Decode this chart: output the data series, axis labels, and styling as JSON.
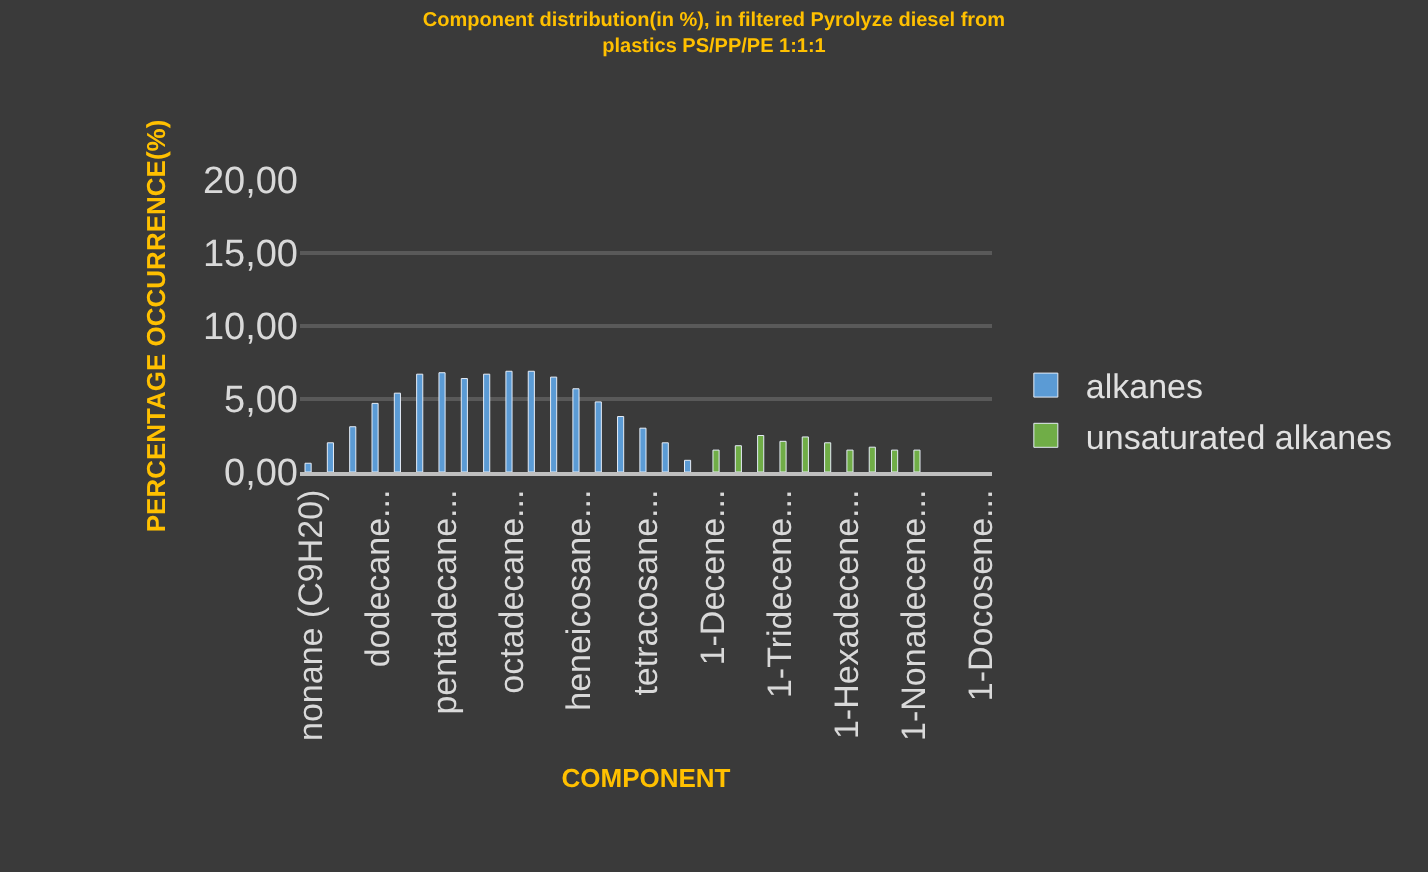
{
  "chart_data": {
    "type": "bar",
    "title": "Component distribution(in %), in filtered Pyrolyze diesel from plastics PS/PP/PE 1:1:1",
    "xlabel": "COMPONENT",
    "ylabel": "PERCENTAGE OCCURRENCE(%)",
    "categories": [
      "nonane (C9H20)",
      null,
      null,
      "dodecane...",
      null,
      null,
      "pentadecane...",
      null,
      null,
      "octadecane...",
      null,
      null,
      "heneicosane...",
      null,
      null,
      "tetracosane...",
      null,
      null,
      "1-Decene...",
      null,
      null,
      "1-Tridecene...",
      null,
      null,
      "1-Hexadecene...",
      null,
      null,
      "1-Nonadecene...",
      null,
      null,
      "1-Docosene..."
    ],
    "series": [
      {
        "name": "alkanes",
        "color": "#5b9bd5",
        "values": [
          0.6,
          2.0,
          3.1,
          4.7,
          5.4,
          6.7,
          6.8,
          6.4,
          6.7,
          6.9,
          6.9,
          6.5,
          5.7,
          4.8,
          3.8,
          3.0,
          2.0,
          0.8,
          null,
          null,
          null,
          null,
          null,
          null,
          null,
          null,
          null,
          null,
          null,
          null,
          null
        ]
      },
      {
        "name": "unsaturated alkanes",
        "color": "#70ad47",
        "values": [
          null,
          null,
          null,
          null,
          null,
          null,
          null,
          null,
          null,
          null,
          null,
          null,
          null,
          null,
          null,
          null,
          null,
          null,
          1.5,
          1.8,
          2.5,
          2.1,
          2.4,
          2.0,
          1.5,
          1.7,
          1.5,
          1.5,
          null,
          null,
          null
        ]
      }
    ],
    "ylim": [
      0,
      20
    ],
    "yticks": [
      {
        "value": 0,
        "label": "0,00"
      },
      {
        "value": 5,
        "label": "5,00"
      },
      {
        "value": 10,
        "label": "10,00"
      },
      {
        "value": 15,
        "label": "15,00"
      },
      {
        "value": 20,
        "label": "20,00"
      }
    ],
    "grid": "y",
    "legend": "right"
  }
}
